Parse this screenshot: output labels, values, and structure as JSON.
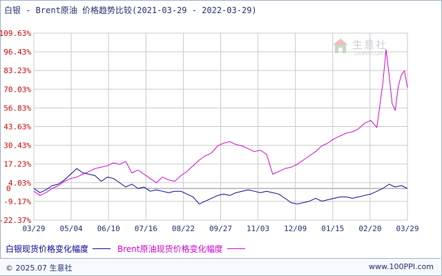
{
  "title": "白银 - Brent原油 价格趋势比较(2021-03-29 - 2022-03-29)",
  "watermark": {
    "cn": "生意社",
    "en": "100PPI.COM"
  },
  "footer": {
    "copyright": "© 2025.07 生意社",
    "site": "www.100PPI.com"
  },
  "colors": {
    "silver": "#00008b",
    "brent": "#cc00cc",
    "grid": "#c8c8c8",
    "axis_text": "#cc0000",
    "x_text": "#1c2f6b"
  },
  "chart_data": {
    "type": "line",
    "title": "白银 - Brent原油 价格趋势比较(2021-03-29 - 2022-03-29)",
    "xlabel": "",
    "ylabel": "",
    "ylim": [
      -22.37,
      109.63
    ],
    "yticks": [
      "109.63%",
      "96.43%",
      "83.23%",
      "70.03%",
      "56.83%",
      "43.63%",
      "30.43%",
      "17.23%",
      "4.03%",
      "-9.17%",
      "-22.37%"
    ],
    "ytick_values": [
      109.63,
      96.43,
      83.23,
      70.03,
      56.83,
      43.63,
      30.43,
      17.23,
      4.03,
      -9.17,
      -22.37
    ],
    "zero_label": "0",
    "xticks": [
      "03/29",
      "05/04",
      "06/10",
      "07/16",
      "08/22",
      "09/27",
      "11/03",
      "12/09",
      "01/15",
      "02/20",
      "03/29"
    ],
    "grid": true,
    "legend_position": "bottom",
    "series": [
      {
        "name": "白银现货价格变化幅度",
        "color": "#00008b",
        "x": [
          0,
          6,
          12,
          18,
          24,
          30,
          36,
          42,
          48,
          54,
          60,
          66,
          72,
          78,
          84,
          90,
          96,
          102,
          108,
          114,
          120,
          126,
          132,
          138,
          144,
          150,
          156,
          162,
          168,
          174,
          180,
          186,
          192,
          198,
          204,
          210,
          216,
          222,
          228,
          234,
          240,
          246,
          252,
          258,
          264,
          270,
          276,
          282,
          288,
          294,
          300,
          306,
          312,
          318,
          324,
          330,
          336,
          342,
          348,
          354,
          360,
          366
        ],
        "values": [
          0.0,
          -3.0,
          -1.0,
          2.0,
          3.0,
          6.0,
          10.0,
          14.0,
          11.0,
          10.0,
          9.0,
          5.0,
          8.0,
          7.0,
          4.0,
          1.0,
          3.0,
          0.0,
          1.0,
          -2.0,
          -1.0,
          -2.0,
          -3.0,
          -2.0,
          -2.0,
          -4.0,
          -6.0,
          -11.0,
          -9.0,
          -7.0,
          -5.0,
          -4.0,
          -5.0,
          -3.0,
          -2.0,
          -1.0,
          -2.0,
          -3.0,
          -2.0,
          -3.0,
          -4.0,
          -7.0,
          -10.0,
          -11.0,
          -10.0,
          -9.0,
          -7.0,
          -9.0,
          -8.0,
          -7.0,
          -6.0,
          -6.0,
          -7.0,
          -6.0,
          -5.0,
          -4.0,
          -2.0,
          0.0,
          3.0,
          1.0,
          2.0,
          0.0
        ]
      },
      {
        "name": "Brent原油现货价格变化幅度",
        "color": "#cc00cc",
        "x": [
          0,
          6,
          12,
          18,
          24,
          30,
          36,
          42,
          48,
          54,
          60,
          66,
          72,
          78,
          84,
          90,
          96,
          102,
          108,
          114,
          120,
          126,
          132,
          138,
          144,
          150,
          156,
          162,
          168,
          174,
          180,
          186,
          192,
          198,
          204,
          210,
          216,
          222,
          228,
          234,
          240,
          246,
          252,
          258,
          264,
          270,
          276,
          282,
          288,
          294,
          300,
          306,
          312,
          318,
          324,
          330,
          336,
          342,
          345,
          348,
          351,
          354,
          357,
          360,
          363,
          366
        ],
        "values": [
          -2.0,
          -5.0,
          -3.0,
          0.0,
          2.0,
          5.0,
          7.0,
          8.0,
          10.0,
          12.0,
          14.0,
          15.0,
          16.0,
          18.0,
          17.0,
          19.0,
          11.0,
          13.0,
          10.0,
          7.0,
          4.0,
          8.0,
          6.0,
          5.0,
          9.0,
          12.0,
          16.0,
          20.0,
          23.0,
          25.0,
          30.0,
          32.0,
          33.0,
          31.0,
          30.0,
          28.0,
          26.0,
          27.0,
          24.0,
          10.0,
          12.0,
          14.0,
          15.0,
          17.0,
          20.0,
          23.0,
          26.0,
          30.0,
          32.0,
          35.0,
          37.0,
          39.0,
          40.0,
          42.0,
          46.0,
          48.0,
          43.0,
          75.0,
          98.0,
          80.0,
          60.0,
          55.0,
          72.0,
          80.0,
          83.0,
          71.0
        ]
      }
    ]
  }
}
